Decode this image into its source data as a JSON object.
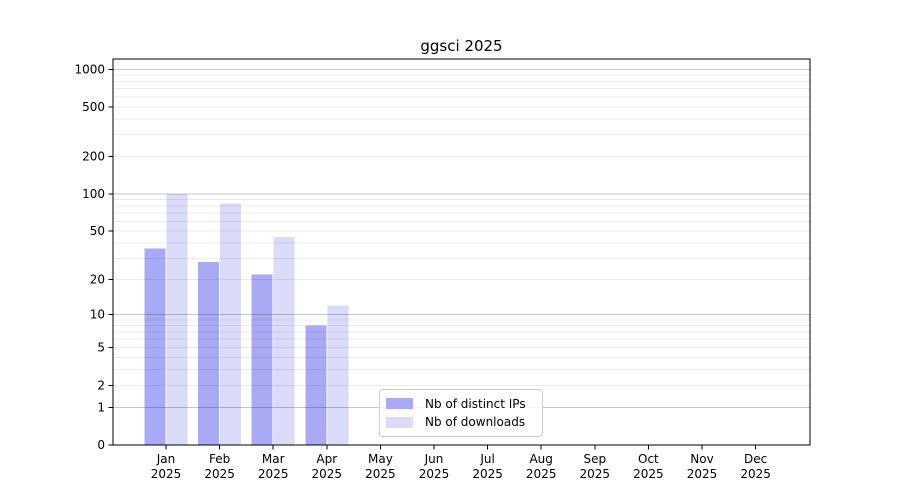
{
  "figure": {
    "background": "#ffffff"
  },
  "chart_data": {
    "type": "bar",
    "title": "ggsci 2025",
    "xlabel": "",
    "ylabel": "",
    "scale": "log1p",
    "grid": "horizontal",
    "legend_position": "lower center",
    "ylim": [
      0,
      1200
    ],
    "yticks": [
      0,
      1,
      2,
      5,
      10,
      20,
      50,
      100,
      200,
      500,
      1000
    ],
    "categories": [
      {
        "label": "Jan",
        "sub": "2025"
      },
      {
        "label": "Feb",
        "sub": "2025"
      },
      {
        "label": "Mar",
        "sub": "2025"
      },
      {
        "label": "Apr",
        "sub": "2025"
      },
      {
        "label": "May",
        "sub": "2025"
      },
      {
        "label": "Jun",
        "sub": "2025"
      },
      {
        "label": "Jul",
        "sub": "2025"
      },
      {
        "label": "Aug",
        "sub": "2025"
      },
      {
        "label": "Sep",
        "sub": "2025"
      },
      {
        "label": "Oct",
        "sub": "2025"
      },
      {
        "label": "Nov",
        "sub": "2025"
      },
      {
        "label": "Dec",
        "sub": "2025"
      }
    ],
    "series": [
      {
        "name": "Nb of distinct IPs",
        "color": "#a9a9f5",
        "values": [
          36,
          28,
          22,
          8,
          0,
          0,
          0,
          0,
          0,
          0,
          0,
          0
        ]
      },
      {
        "name": "Nb of downloads",
        "color": "#dadaf9",
        "values": [
          100,
          84,
          45,
          12,
          0,
          0,
          0,
          0,
          0,
          0,
          0,
          0
        ]
      }
    ],
    "axis_color": "#000000",
    "major_grid_color": "rgba(0,0,0,0.22)",
    "minor_grid_color": "rgba(0,0,0,0.075)"
  }
}
